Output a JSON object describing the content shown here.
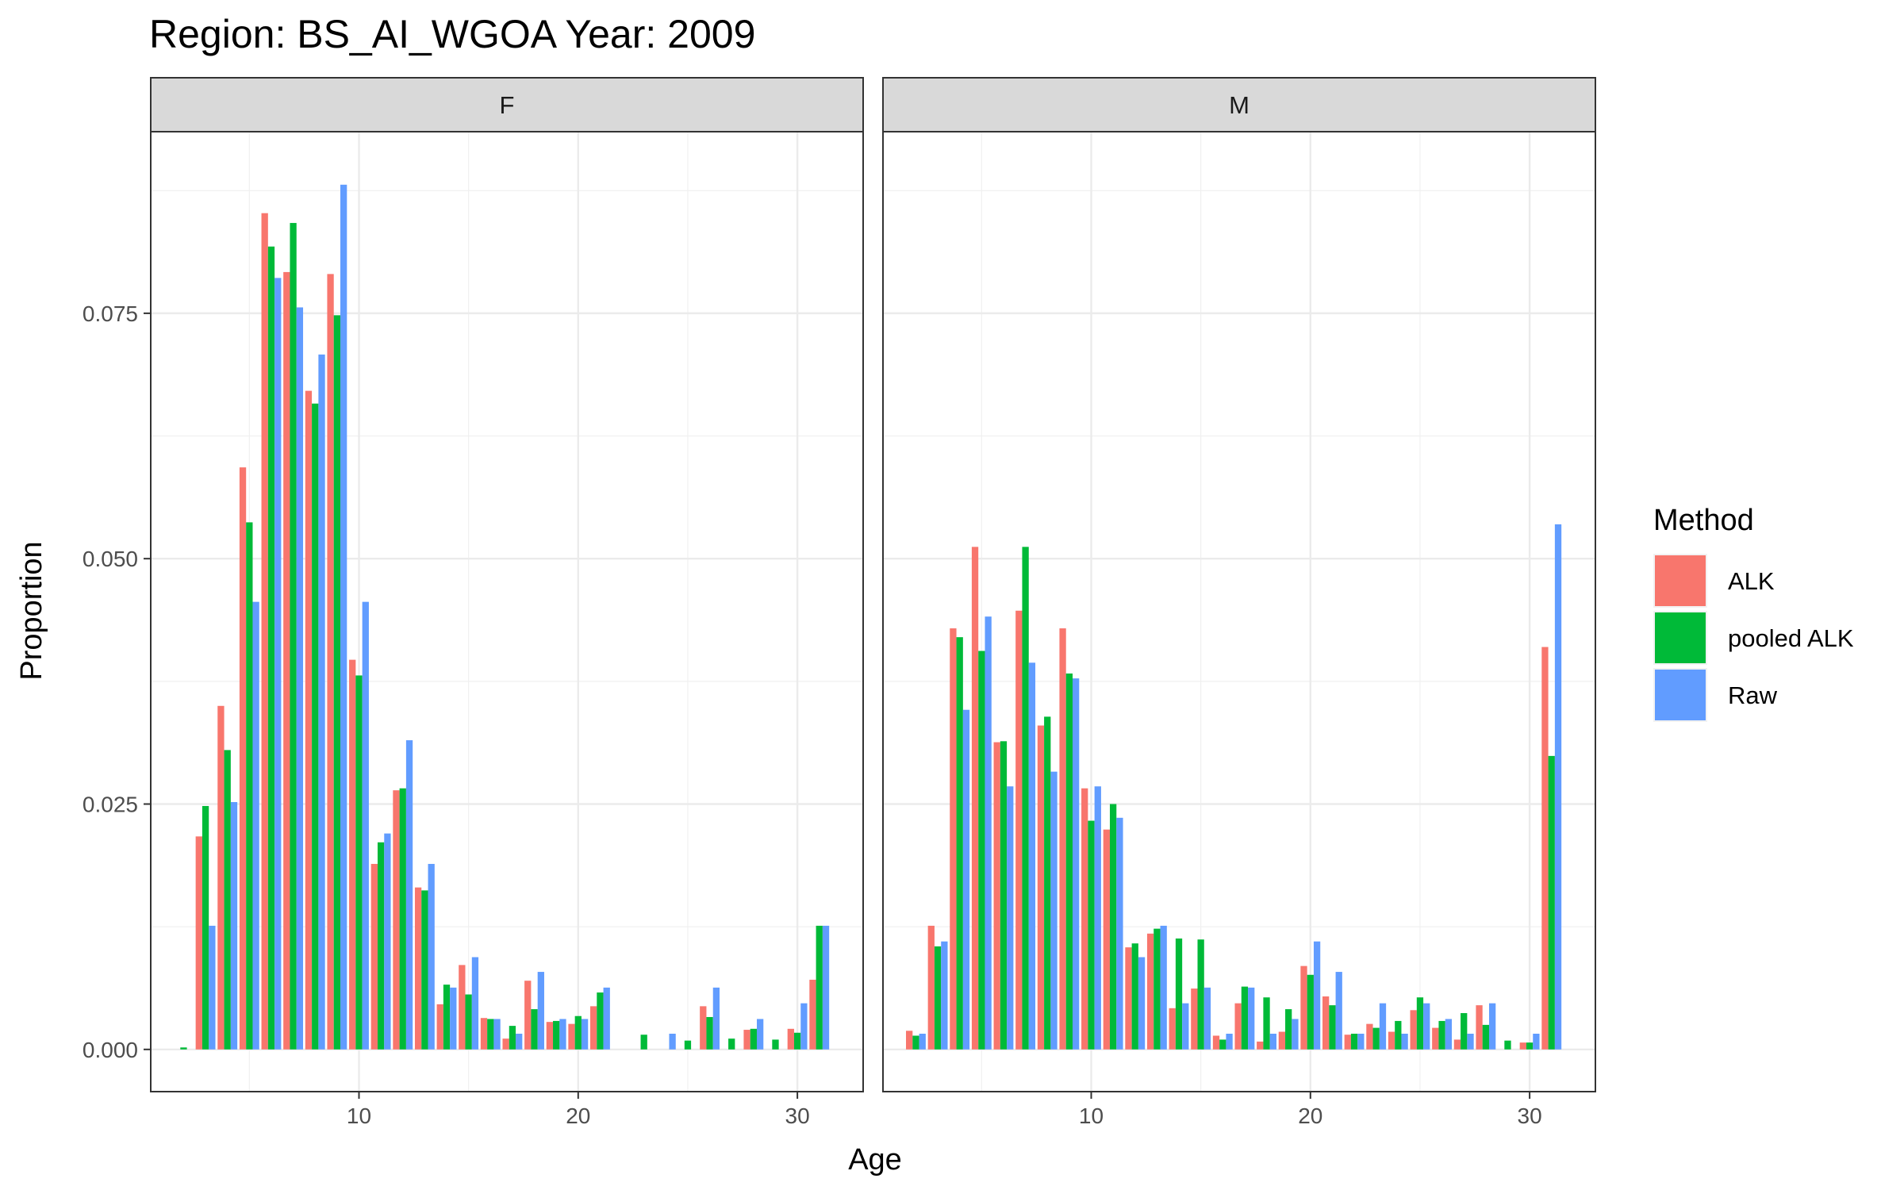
{
  "chart_data": {
    "type": "bar",
    "title": "Region: BS_AI_WGOA Year: 2009",
    "xlabel": "Age",
    "ylabel": "Proportion",
    "xlim": [
      0.5,
      33
    ],
    "ylim": [
      -0.0043,
      0.0935
    ],
    "xticks": [
      10,
      20,
      30
    ],
    "xtick_labels": [
      "10",
      "20",
      "30"
    ],
    "yticks": [
      0,
      0.025,
      0.05,
      0.075
    ],
    "ytick_labels": [
      "0.000",
      "0.025",
      "0.050",
      "0.075"
    ],
    "grid": true,
    "legend": {
      "title": "Method",
      "position": "right",
      "entries": [
        {
          "name": "ALK",
          "color": "#F8766D"
        },
        {
          "name": "pooled ALK",
          "color": "#00BA38"
        },
        {
          "name": "Raw",
          "color": "#619CFF"
        }
      ]
    },
    "facets": [
      {
        "label": "F",
        "series": [
          {
            "name": "ALK",
            "points": [
              [
                3,
                0.0217
              ],
              [
                4,
                0.035
              ],
              [
                5,
                0.0593
              ],
              [
                6,
                0.0852
              ],
              [
                7,
                0.0792
              ],
              [
                8,
                0.0671
              ],
              [
                9,
                0.079
              ],
              [
                10,
                0.0397
              ],
              [
                11,
                0.0189
              ],
              [
                12,
                0.0264
              ],
              [
                13,
                0.0165
              ],
              [
                14,
                0.0046
              ],
              [
                15,
                0.0086
              ],
              [
                16,
                0.0032
              ],
              [
                17,
                0.0011
              ],
              [
                18,
                0.007
              ],
              [
                19,
                0.0028
              ],
              [
                20,
                0.0026
              ],
              [
                21,
                0.0044
              ],
              [
                26,
                0.0044
              ],
              [
                28,
                0.002
              ],
              [
                30,
                0.0021
              ],
              [
                31,
                0.0071
              ]
            ]
          },
          {
            "name": "pooled ALK",
            "points": [
              [
                2,
                0.0002
              ],
              [
                3,
                0.0248
              ],
              [
                4,
                0.0305
              ],
              [
                5,
                0.0537
              ],
              [
                6,
                0.0818
              ],
              [
                7,
                0.0842
              ],
              [
                8,
                0.0658
              ],
              [
                9,
                0.0748
              ],
              [
                10,
                0.0381
              ],
              [
                11,
                0.0211
              ],
              [
                12,
                0.0266
              ],
              [
                13,
                0.0162
              ],
              [
                14,
                0.0066
              ],
              [
                15,
                0.0056
              ],
              [
                16,
                0.0031
              ],
              [
                17,
                0.0024
              ],
              [
                18,
                0.0041
              ],
              [
                19,
                0.0029
              ],
              [
                20,
                0.0034
              ],
              [
                21,
                0.0058
              ],
              [
                23,
                0.0015
              ],
              [
                25,
                0.0009
              ],
              [
                26,
                0.0033
              ],
              [
                27,
                0.0011
              ],
              [
                28,
                0.0021
              ],
              [
                29,
                0.001
              ],
              [
                30,
                0.0017
              ],
              [
                31,
                0.0126
              ]
            ]
          },
          {
            "name": "Raw",
            "points": [
              [
                3,
                0.0126
              ],
              [
                4,
                0.0252
              ],
              [
                5,
                0.0456
              ],
              [
                6,
                0.0786
              ],
              [
                7,
                0.0756
              ],
              [
                8,
                0.0708
              ],
              [
                9,
                0.0881
              ],
              [
                10,
                0.0456
              ],
              [
                11,
                0.022
              ],
              [
                12,
                0.0315
              ],
              [
                13,
                0.0189
              ],
              [
                14,
                0.0063
              ],
              [
                15,
                0.0094
              ],
              [
                16,
                0.0031
              ],
              [
                17,
                0.0016
              ],
              [
                18,
                0.0079
              ],
              [
                19,
                0.0031
              ],
              [
                20,
                0.0031
              ],
              [
                21,
                0.0063
              ],
              [
                24,
                0.0016
              ],
              [
                26,
                0.0063
              ],
              [
                28,
                0.0031
              ],
              [
                30,
                0.0047
              ],
              [
                31,
                0.0126
              ]
            ]
          }
        ]
      },
      {
        "label": "M",
        "series": [
          {
            "name": "ALK",
            "points": [
              [
                2,
                0.0019
              ],
              [
                3,
                0.0126
              ],
              [
                4,
                0.0429
              ],
              [
                5,
                0.0512
              ],
              [
                6,
                0.0313
              ],
              [
                7,
                0.0447
              ],
              [
                8,
                0.033
              ],
              [
                9,
                0.0429
              ],
              [
                10,
                0.0266
              ],
              [
                11,
                0.0224
              ],
              [
                12,
                0.0104
              ],
              [
                13,
                0.0118
              ],
              [
                14,
                0.0042
              ],
              [
                15,
                0.0062
              ],
              [
                16,
                0.0014
              ],
              [
                17,
                0.0047
              ],
              [
                18,
                0.0008
              ],
              [
                19,
                0.0018
              ],
              [
                20,
                0.0085
              ],
              [
                21,
                0.0054
              ],
              [
                22,
                0.0015
              ],
              [
                23,
                0.0026
              ],
              [
                24,
                0.0018
              ],
              [
                25,
                0.004
              ],
              [
                26,
                0.0022
              ],
              [
                27,
                0.001
              ],
              [
                28,
                0.0045
              ],
              [
                30,
                0.0007
              ],
              [
                31,
                0.041
              ]
            ]
          },
          {
            "name": "pooled ALK",
            "points": [
              [
                2,
                0.0014
              ],
              [
                3,
                0.0105
              ],
              [
                4,
                0.042
              ],
              [
                5,
                0.0406
              ],
              [
                6,
                0.0314
              ],
              [
                7,
                0.0512
              ],
              [
                8,
                0.0339
              ],
              [
                9,
                0.0383
              ],
              [
                10,
                0.0233
              ],
              [
                11,
                0.025
              ],
              [
                12,
                0.0108
              ],
              [
                13,
                0.0123
              ],
              [
                14,
                0.0113
              ],
              [
                15,
                0.0112
              ],
              [
                16,
                0.001
              ],
              [
                17,
                0.0064
              ],
              [
                18,
                0.0053
              ],
              [
                19,
                0.0041
              ],
              [
                20,
                0.0076
              ],
              [
                21,
                0.0045
              ],
              [
                22,
                0.0016
              ],
              [
                23,
                0.0022
              ],
              [
                24,
                0.0029
              ],
              [
                25,
                0.0053
              ],
              [
                26,
                0.0029
              ],
              [
                27,
                0.0037
              ],
              [
                28,
                0.0025
              ],
              [
                29,
                0.0009
              ],
              [
                30,
                0.0007
              ],
              [
                31,
                0.0299
              ]
            ]
          },
          {
            "name": "Raw",
            "points": [
              [
                2,
                0.0016
              ],
              [
                3,
                0.011
              ],
              [
                4,
                0.0346
              ],
              [
                5,
                0.0441
              ],
              [
                6,
                0.0268
              ],
              [
                7,
                0.0394
              ],
              [
                8,
                0.0283
              ],
              [
                9,
                0.0378
              ],
              [
                10,
                0.0268
              ],
              [
                11,
                0.0236
              ],
              [
                12,
                0.0094
              ],
              [
                13,
                0.0126
              ],
              [
                14,
                0.0047
              ],
              [
                15,
                0.0063
              ],
              [
                16,
                0.0016
              ],
              [
                17,
                0.0063
              ],
              [
                18,
                0.0016
              ],
              [
                19,
                0.0031
              ],
              [
                20,
                0.011
              ],
              [
                21,
                0.0079
              ],
              [
                22,
                0.0016
              ],
              [
                23,
                0.0047
              ],
              [
                24,
                0.0016
              ],
              [
                25,
                0.0047
              ],
              [
                26,
                0.0031
              ],
              [
                27,
                0.0016
              ],
              [
                28,
                0.0047
              ],
              [
                30,
                0.0016
              ],
              [
                31,
                0.0535
              ]
            ]
          }
        ]
      }
    ]
  }
}
